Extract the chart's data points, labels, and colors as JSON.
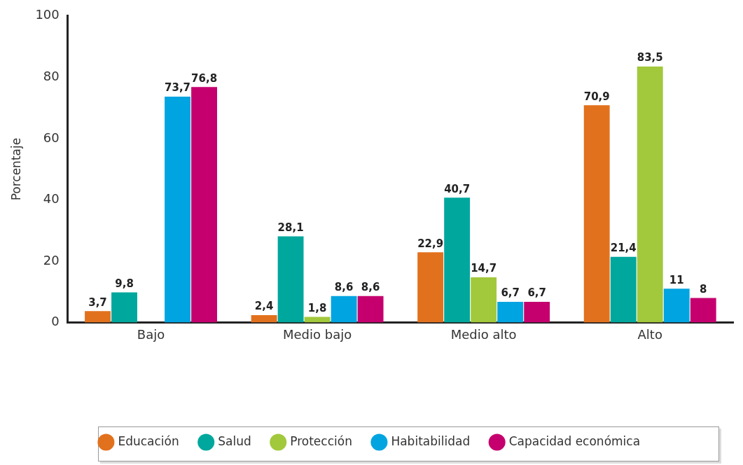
{
  "chart_data": {
    "type": "bar",
    "ylabel": "Porcentaje",
    "categories": [
      "Bajo",
      "Medio bajo",
      "Medio alto",
      "Alto"
    ],
    "series": [
      {
        "name": "Educación",
        "color": "#e2711d",
        "values": [
          3.7,
          2.4,
          22.9,
          70.9
        ],
        "value_labels": [
          "3,7",
          "2,4",
          "22,9",
          "70,9"
        ]
      },
      {
        "name": "Salud",
        "color": "#00a79d",
        "values": [
          9.8,
          28.1,
          40.7,
          21.4
        ],
        "value_labels": [
          "9,8",
          "28,1",
          "40,7",
          "21,4"
        ]
      },
      {
        "name": "Protección",
        "color": "#a2c83b",
        "values": [
          null,
          1.8,
          14.7,
          83.5
        ],
        "value_labels": [
          null,
          "1,8",
          "14,7",
          "83,5"
        ]
      },
      {
        "name": "Habitabilidad",
        "color": "#00a4e0",
        "values": [
          73.7,
          8.6,
          6.7,
          11
        ],
        "value_labels": [
          "73,7",
          "8,6",
          "6,7",
          "11"
        ]
      },
      {
        "name": "Capacidad económica",
        "color": "#c5006e",
        "values": [
          76.8,
          8.6,
          6.7,
          8
        ],
        "value_labels": [
          "76,8",
          "8,6",
          "6,7",
          "8"
        ]
      }
    ],
    "ylim": [
      0,
      100
    ],
    "yticks": [
      0,
      20,
      40,
      60,
      80,
      100
    ],
    "grid": false,
    "legend": "bottom"
  }
}
